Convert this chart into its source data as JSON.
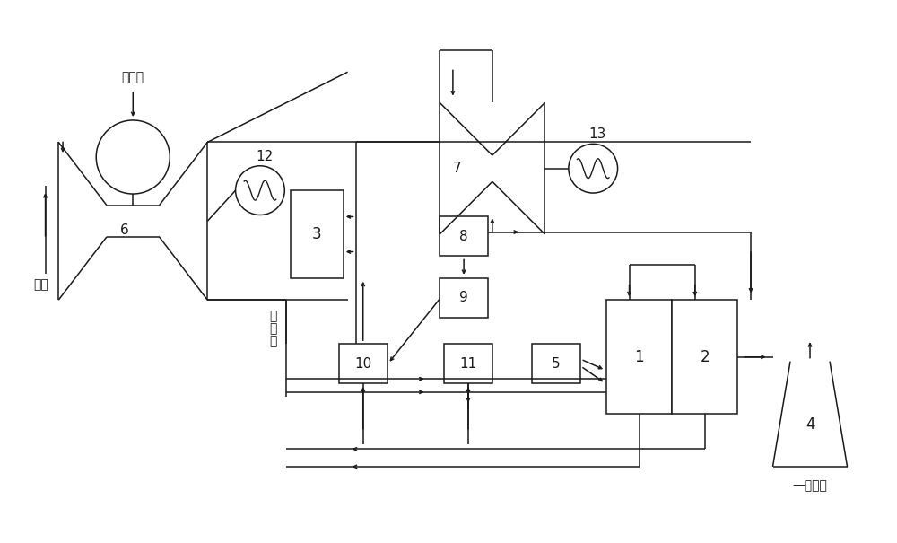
{
  "bg_color": "#ffffff",
  "line_color": "#1a1a1a",
  "fig_width": 10.0,
  "fig_height": 6.05,
  "labels": {
    "tianranqi": "天然气",
    "kongqi": "空气",
    "shi_yanqi": "湿\n烟\n气",
    "gan_yanqi": "干烟气",
    "comp6": "6",
    "comp3": "3",
    "comp7": "7",
    "comp8": "8",
    "comp9": "9",
    "comp10": "10",
    "comp11": "11",
    "comp5": "5",
    "comp1": "1",
    "comp2": "2",
    "comp4": "4",
    "comp12": "12",
    "comp13": "13"
  },
  "fontsize_label": 10,
  "fontsize_num": 11,
  "lw": 1.1
}
